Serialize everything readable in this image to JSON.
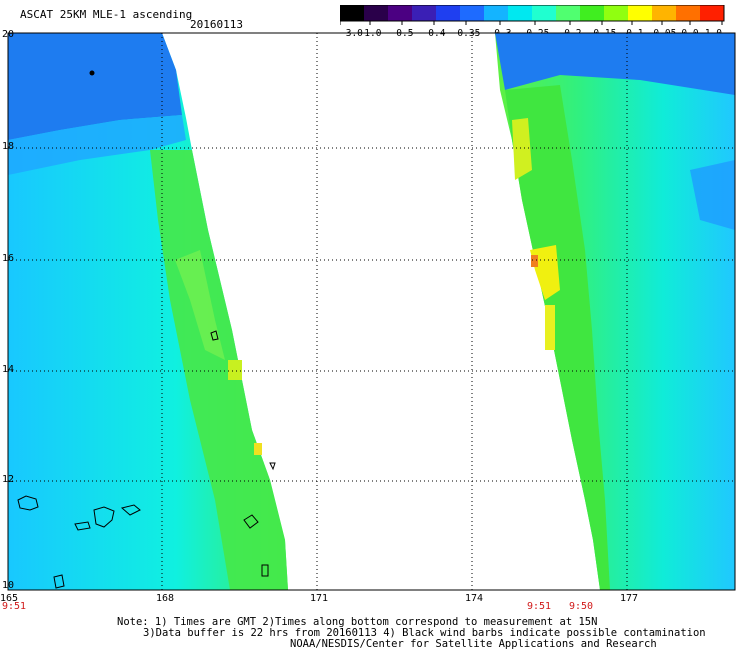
{
  "header": {
    "title": "ASCAT 25KM MLE-1 ascending",
    "date": "20160113"
  },
  "colorbar": {
    "tick_labels": [
      "-3.0",
      "-1.0",
      "-0.5",
      "-0.4",
      "-0.35",
      "-0.3",
      "-0.25",
      "-0.2",
      "-0.15",
      "-0.1",
      "-0.05",
      "0.0",
      "1.0"
    ],
    "colors": [
      "#000000",
      "#2a004a",
      "#4b0082",
      "#3a1fb5",
      "#1f3ff0",
      "#1e6bff",
      "#14b4ff",
      "#00e8f0",
      "#20ffd0",
      "#50ff70",
      "#40ee20",
      "#90ff10",
      "#ffff00",
      "#ffb400",
      "#ff7000",
      "#ff2000"
    ]
  },
  "map": {
    "lon_labels": [
      "165",
      "168",
      "171",
      "174",
      "177"
    ],
    "lat_labels": [
      "20",
      "18",
      "16",
      "14",
      "12",
      "10"
    ],
    "times": {
      "left": "9:51",
      "right_a": "9:51",
      "right_b": "9:50"
    },
    "background_color": "#ffffff",
    "grid_color": "#000000"
  },
  "footer": {
    "note_line1": "Note: 1) Times are GMT 2)Times along bottom correspond to measurement at 15N",
    "note_line2": "3)Data buffer is 22 hrs from 20160113 4) Black wind barbs indicate possible contamination",
    "note_line3": "NOAA/NESDIS/Center for Satellite Applications and Research"
  }
}
